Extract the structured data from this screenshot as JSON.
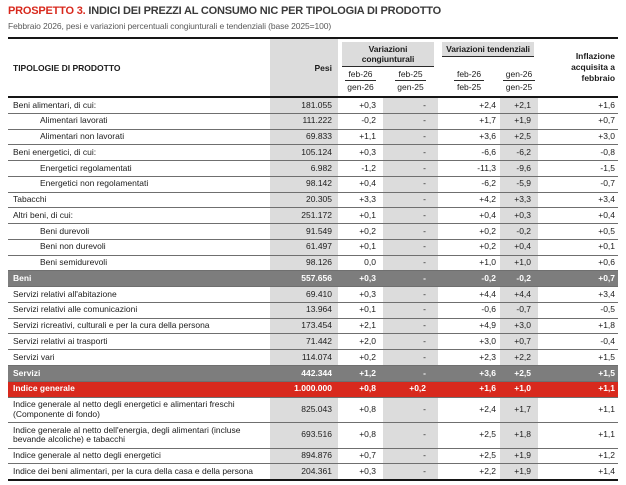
{
  "title": {
    "prefix": "PROSPETTO 3.",
    "text": " INDICI DEI PREZZI AL CONSUMO NIC PER TIPOLOGIA DI PRODOTTO"
  },
  "subtitle": "Febbraio 2026, pesi e variazioni percentuali congiunturali e tendenziali (base 2025=100)",
  "colors": {
    "accent_red": "#D8291D",
    "band_gray": "#7D7D7D",
    "column_gray": "#DCDCDC"
  },
  "table": {
    "header": {
      "product": "TIPOLOGIE DI PRODOTTO",
      "pesi": "Pesi",
      "group_congiunturali": "Variazioni congiunturali",
      "group_tendenziali": "Variazioni tendenziali",
      "inflazione_lines": [
        "Inflazione",
        "acquisita a",
        "febbraio"
      ],
      "subcols": [
        {
          "num": "feb-26",
          "den": "gen-26"
        },
        {
          "num": "feb-25",
          "den": "gen-25"
        },
        {
          "num": "feb-26",
          "den": "feb-25"
        },
        {
          "num": "gen-26",
          "den": "gen-25"
        }
      ]
    },
    "rows": [
      {
        "label": "Beni alimentari, di cui:",
        "indent": 0,
        "style": "normal",
        "pesi": "181.055",
        "c1": "+0,3",
        "c2": "-",
        "t1": "+2,4",
        "t2": "+2,1",
        "infl": "+1,6"
      },
      {
        "label": "Alimentari lavorati",
        "indent": 1,
        "style": "normal",
        "pesi": "111.222",
        "c1": "-0,2",
        "c2": "-",
        "t1": "+1,7",
        "t2": "+1,9",
        "infl": "+0,7"
      },
      {
        "label": "Alimentari non lavorati",
        "indent": 1,
        "style": "normal",
        "pesi": "69.833",
        "c1": "+1,1",
        "c2": "-",
        "t1": "+3,6",
        "t2": "+2,5",
        "infl": "+3,0"
      },
      {
        "label": "Beni energetici, di cui:",
        "indent": 0,
        "style": "normal",
        "pesi": "105.124",
        "c1": "+0,3",
        "c2": "-",
        "t1": "-6,6",
        "t2": "-6,2",
        "infl": "-0,8"
      },
      {
        "label": "Energetici regolamentati",
        "indent": 1,
        "style": "normal",
        "pesi": "6.982",
        "c1": "-1,2",
        "c2": "-",
        "t1": "-11,3",
        "t2": "-9,6",
        "infl": "-1,5"
      },
      {
        "label": "Energetici non regolamentati",
        "indent": 1,
        "style": "normal",
        "pesi": "98.142",
        "c1": "+0,4",
        "c2": "-",
        "t1": "-6,2",
        "t2": "-5,9",
        "infl": "-0,7"
      },
      {
        "label": "Tabacchi",
        "indent": 0,
        "style": "normal",
        "pesi": "20.305",
        "c1": "+3,3",
        "c2": "-",
        "t1": "+4,2",
        "t2": "+3,3",
        "infl": "+3,4"
      },
      {
        "label": "Altri beni, di cui:",
        "indent": 0,
        "style": "normal",
        "pesi": "251.172",
        "c1": "+0,1",
        "c2": "-",
        "t1": "+0,4",
        "t2": "+0,3",
        "infl": "+0,4"
      },
      {
        "label": "Beni durevoli",
        "indent": 1,
        "style": "normal",
        "pesi": "91.549",
        "c1": "+0,2",
        "c2": "-",
        "t1": "+0,2",
        "t2": "-0,2",
        "infl": "+0,5"
      },
      {
        "label": "Beni non durevoli",
        "indent": 1,
        "style": "normal",
        "pesi": "61.497",
        "c1": "+0,1",
        "c2": "-",
        "t1": "+0,2",
        "t2": "+0,4",
        "infl": "+0,1"
      },
      {
        "label": "Beni semidurevoli",
        "indent": 1,
        "style": "normal",
        "pesi": "98.126",
        "c1": "0,0",
        "c2": "-",
        "t1": "+1,0",
        "t2": "+1,0",
        "infl": "+0,6"
      },
      {
        "label": "Beni",
        "indent": 0,
        "style": "band",
        "pesi": "557.656",
        "c1": "+0,3",
        "c2": "-",
        "t1": "-0,2",
        "t2": "-0,2",
        "infl": "+0,7"
      },
      {
        "label": "Servizi relativi all'abitazione",
        "indent": 0,
        "style": "normal",
        "pesi": "69.410",
        "c1": "+0,3",
        "c2": "-",
        "t1": "+4,4",
        "t2": "+4,4",
        "infl": "+3,4"
      },
      {
        "label": "Servizi relativi alle comunicazioni",
        "indent": 0,
        "style": "normal",
        "pesi": "13.964",
        "c1": "+0,1",
        "c2": "-",
        "t1": "-0,6",
        "t2": "-0,7",
        "infl": "-0,5"
      },
      {
        "label": "Servizi ricreativi, culturali e per la cura della persona",
        "indent": 0,
        "style": "normal",
        "pesi": "173.454",
        "c1": "+2,1",
        "c2": "-",
        "t1": "+4,9",
        "t2": "+3,0",
        "infl": "+1,8"
      },
      {
        "label": "Servizi relativi ai trasporti",
        "indent": 0,
        "style": "normal",
        "pesi": "71.442",
        "c1": "+2,0",
        "c2": "-",
        "t1": "+3,0",
        "t2": "+0,7",
        "infl": "-0,4"
      },
      {
        "label": "Servizi vari",
        "indent": 0,
        "style": "normal",
        "pesi": "114.074",
        "c1": "+0,2",
        "c2": "-",
        "t1": "+2,3",
        "t2": "+2,2",
        "infl": "+1,5"
      },
      {
        "label": "Servizi",
        "indent": 0,
        "style": "band",
        "pesi": "442.344",
        "c1": "+1,2",
        "c2": "-",
        "t1": "+3,6",
        "t2": "+2,5",
        "infl": "+1,5"
      },
      {
        "label": "Indice generale",
        "indent": 0,
        "style": "red",
        "pesi": "1.000.000",
        "c1": "+0,8",
        "c2": "+0,2",
        "t1": "+1,6",
        "t2": "+1,0",
        "infl": "+1,1"
      },
      {
        "label": "Indice generale al netto degli energetici e alimentari freschi (Componente di fondo)",
        "indent": 0,
        "style": "normal",
        "pesi": "825.043",
        "c1": "+0,8",
        "c2": "-",
        "t1": "+2,4",
        "t2": "+1,7",
        "infl": "+1,1"
      },
      {
        "label": "Indice generale al netto dell'energia, degli alimentari (incluse bevande alcoliche) e tabacchi",
        "indent": 0,
        "style": "normal",
        "pesi": "693.516",
        "c1": "+0,8",
        "c2": "-",
        "t1": "+2,5",
        "t2": "+1,8",
        "infl": "+1,1"
      },
      {
        "label": "Indice generale al netto degli energetici",
        "indent": 0,
        "style": "normal",
        "pesi": "894.876",
        "c1": "+0,7",
        "c2": "-",
        "t1": "+2,5",
        "t2": "+1,9",
        "infl": "+1,2"
      },
      {
        "label": "Indice dei beni alimentari, per la cura della casa e della persona",
        "indent": 0,
        "style": "normal",
        "pesi": "204.361",
        "c1": "+0,3",
        "c2": "-",
        "t1": "+2,2",
        "t2": "+1,9",
        "infl": "+1,4"
      }
    ]
  }
}
